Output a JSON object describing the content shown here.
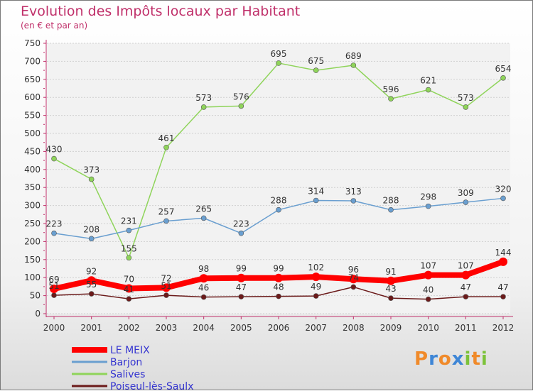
{
  "title": "Evolution des Impôts locaux par Habitant",
  "subtitle": "(en € et par an)",
  "brand": {
    "letters": [
      "P",
      "r",
      "o",
      "x",
      "i",
      "t",
      "i"
    ],
    "colors": [
      "#f08a2a",
      "#3e86d6",
      "#f08a2a",
      "#3e86d6",
      "#7cc23a",
      "#f08a2a",
      "#7cc23a"
    ]
  },
  "chart_data": {
    "type": "line",
    "x": [
      "2000",
      "2001",
      "2002",
      "2003",
      "2004",
      "2005",
      "2006",
      "2007",
      "2008",
      "2009",
      "2010",
      "2011",
      "2012"
    ],
    "ylim": [
      0,
      750
    ],
    "yticks": [
      "0",
      "50",
      "100",
      "150",
      "200",
      "250",
      "300",
      "350",
      "400",
      "450",
      "500",
      "550",
      "600",
      "650",
      "700",
      "750"
    ],
    "grid": true,
    "series": [
      {
        "name": "LE MEIX",
        "color": "#ff0000",
        "width": 8,
        "marker": 6,
        "values": [
          69,
          92,
          70,
          72,
          98,
          99,
          99,
          102,
          96,
          91,
          107,
          107,
          144
        ],
        "labels": [
          "69",
          "92",
          "70",
          "72",
          "98",
          "99",
          "99",
          "102",
          "96",
          "91",
          "107",
          "107",
          "144"
        ]
      },
      {
        "name": "Barjon",
        "color": "#6a9fd0",
        "width": 1.5,
        "marker": 3.5,
        "values": [
          223,
          208,
          231,
          257,
          265,
          223,
          288,
          314,
          313,
          288,
          298,
          309,
          320
        ],
        "labels": [
          "223",
          "208",
          "231",
          "257",
          "265",
          "223",
          "288",
          "314",
          "313",
          "288",
          "298",
          "309",
          "320"
        ]
      },
      {
        "name": "Salives",
        "color": "#8fd45a",
        "width": 1.5,
        "marker": 3.5,
        "values": [
          430,
          373,
          155,
          461,
          573,
          576,
          695,
          675,
          689,
          596,
          621,
          573,
          654
        ],
        "labels": [
          "430",
          "373",
          "155",
          "461",
          "573",
          "576",
          "695",
          "675",
          "689",
          "596",
          "621",
          "573",
          "654"
        ]
      },
      {
        "name": "Poiseul-lès-Saulx",
        "color": "#6b1a1a",
        "width": 1.5,
        "marker": 3.5,
        "values": [
          51,
          55,
          41,
          51,
          46,
          47,
          48,
          49,
          74,
          43,
          40,
          47,
          47
        ],
        "labels": [
          "51",
          "55",
          "41",
          "51",
          "46",
          "47",
          "48",
          "49",
          "74",
          "43",
          "40",
          "47",
          "47"
        ]
      }
    ]
  }
}
